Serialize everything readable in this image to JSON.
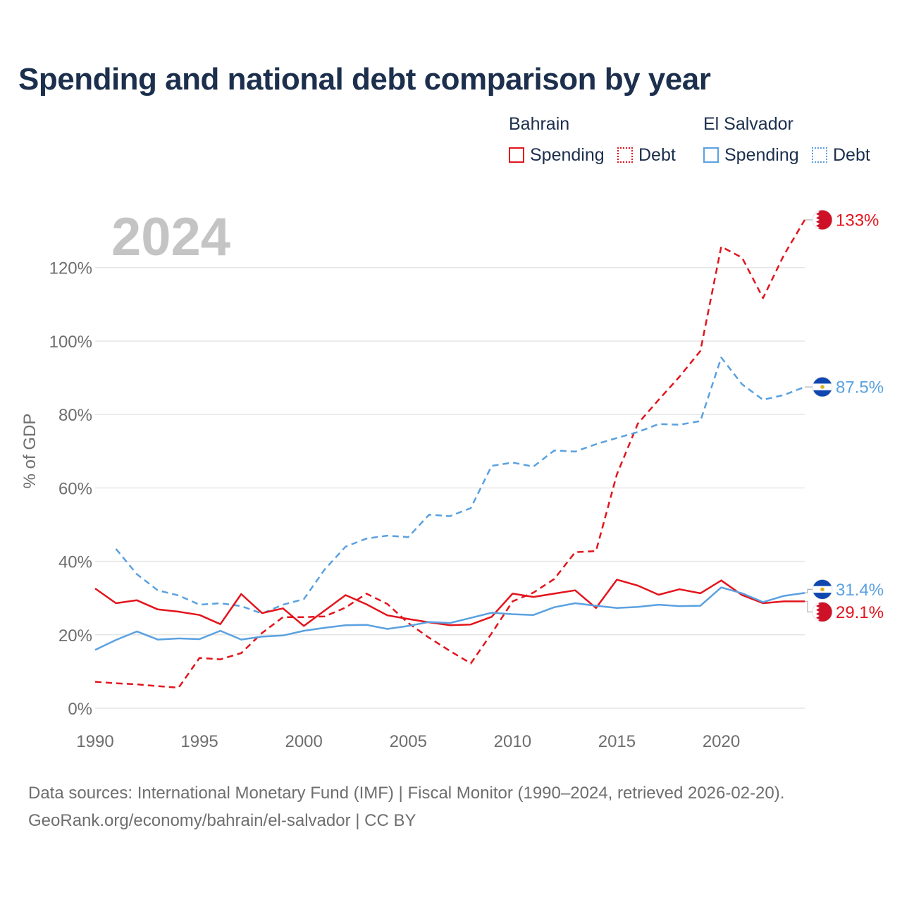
{
  "chart_data": {
    "type": "line",
    "title": "Spending and national debt comparison by year",
    "year_label": "2024",
    "ylabel": "% of GDP",
    "xlabel": "",
    "xlim": [
      1990,
      2024
    ],
    "ylim": [
      0,
      133
    ],
    "y_ticks": [
      0,
      20,
      40,
      60,
      80,
      100,
      120
    ],
    "y_tick_labels": [
      "0%",
      "20%",
      "40%",
      "60%",
      "80%",
      "100%",
      "120%"
    ],
    "x_ticks": [
      1990,
      1995,
      2000,
      2005,
      2010,
      2015,
      2020
    ],
    "x_tick_labels": [
      "1990",
      "1995",
      "2000",
      "2005",
      "2010",
      "2015",
      "2020"
    ],
    "legend_groups": [
      {
        "country": "Bahrain",
        "items": [
          "Spending",
          "Debt"
        ]
      },
      {
        "country": "El Salvador",
        "items": [
          "Spending",
          "Debt"
        ]
      }
    ],
    "series": [
      {
        "name": "Bahrain Debt",
        "country": "Bahrain",
        "metric": "Debt",
        "color": "#e3141c",
        "dash": true,
        "x": [
          1990,
          1991,
          1992,
          1993,
          1994,
          1995,
          1996,
          1997,
          1998,
          1999,
          2000,
          2001,
          2002,
          2003,
          2004,
          2005,
          2006,
          2007,
          2008,
          2009,
          2010,
          2011,
          2012,
          2013,
          2014,
          2015,
          2016,
          2017,
          2018,
          2019,
          2020,
          2021,
          2022,
          2023,
          2024
        ],
        "values": [
          7.2,
          6.8,
          6.5,
          6.0,
          5.6,
          13.7,
          13.3,
          15.0,
          20.5,
          24.8,
          24.8,
          25.0,
          27.4,
          31.2,
          28.4,
          23.2,
          19.2,
          15.6,
          12.2,
          20.4,
          29.1,
          31.5,
          35.2,
          42.5,
          42.8,
          63.7,
          77.5,
          84.0,
          90.3,
          97.3,
          125.7,
          122.7,
          111.7,
          123.4,
          133.0
        ],
        "end_label": "133%"
      },
      {
        "name": "El Salvador Debt",
        "country": "El Salvador",
        "metric": "Debt",
        "color": "#5aa1e0",
        "dash": true,
        "x": [
          1991,
          1992,
          1993,
          1994,
          1995,
          1996,
          1997,
          1998,
          1999,
          2000,
          2001,
          2002,
          2003,
          2004,
          2005,
          2006,
          2007,
          2008,
          2009,
          2010,
          2011,
          2012,
          2013,
          2014,
          2015,
          2016,
          2017,
          2018,
          2019,
          2020,
          2021,
          2022,
          2023,
          2024
        ],
        "values": [
          43.4,
          36.5,
          32.1,
          30.7,
          28.2,
          28.6,
          27.8,
          25.8,
          28.2,
          29.7,
          37.8,
          44.0,
          46.2,
          47.0,
          46.6,
          52.7,
          52.3,
          54.5,
          66.0,
          66.9,
          65.8,
          70.2,
          69.9,
          71.9,
          73.6,
          75.2,
          77.4,
          77.2,
          78.2,
          95.5,
          88.2,
          84.0,
          85.3,
          87.5
        ],
        "end_label": "87.5%"
      },
      {
        "name": "Bahrain Spending",
        "country": "Bahrain",
        "metric": "Spending",
        "color": "#e3141c",
        "dash": false,
        "x": [
          1990,
          1991,
          1992,
          1993,
          1994,
          1995,
          1996,
          1997,
          1998,
          1999,
          2000,
          2001,
          2002,
          2003,
          2004,
          2005,
          2006,
          2007,
          2008,
          2009,
          2010,
          2011,
          2012,
          2013,
          2014,
          2015,
          2016,
          2017,
          2018,
          2019,
          2020,
          2021,
          2022,
          2023,
          2024
        ],
        "values": [
          32.6,
          28.6,
          29.4,
          26.9,
          26.3,
          25.4,
          22.9,
          31.1,
          25.9,
          27.2,
          22.4,
          26.6,
          30.8,
          28.3,
          25.3,
          24.3,
          23.4,
          22.6,
          22.8,
          24.9,
          31.2,
          30.3,
          31.2,
          32.1,
          27.3,
          35.0,
          33.4,
          30.9,
          32.4,
          31.3,
          34.8,
          30.8,
          28.6,
          29.1,
          29.1
        ],
        "end_label": "29.1%"
      },
      {
        "name": "El Salvador Spending",
        "country": "El Salvador",
        "metric": "Spending",
        "color": "#5aa1e0",
        "dash": false,
        "x": [
          1990,
          1991,
          1992,
          1993,
          1994,
          1995,
          1996,
          1997,
          1998,
          1999,
          2000,
          2001,
          2002,
          2003,
          2004,
          2005,
          2006,
          2007,
          2008,
          2009,
          2010,
          2011,
          2012,
          2013,
          2014,
          2015,
          2016,
          2017,
          2018,
          2019,
          2020,
          2021,
          2022,
          2023,
          2024
        ],
        "values": [
          15.9,
          18.6,
          20.9,
          18.7,
          19.0,
          18.8,
          21.1,
          18.7,
          19.5,
          19.8,
          21.1,
          21.9,
          22.6,
          22.7,
          21.6,
          22.4,
          23.5,
          23.2,
          24.6,
          26.0,
          25.6,
          25.4,
          27.5,
          28.6,
          27.9,
          27.3,
          27.6,
          28.2,
          27.8,
          27.9,
          32.9,
          31.3,
          28.9,
          30.6,
          31.4
        ],
        "end_label": "31.4%"
      }
    ]
  },
  "legend": {
    "bahrain_title": "Bahrain",
    "el_salvador_title": "El Salvador",
    "spending_label": "Spending",
    "debt_label": "Debt"
  },
  "flags": {
    "bahrain": {
      "colors": [
        "#ce1126",
        "#ffffff"
      ]
    },
    "el_salvador": {
      "colors": [
        "#0f47af",
        "#ffffff",
        "#e0b020"
      ]
    }
  },
  "footer": {
    "line1": "Data sources: International Monetary Fund (IMF) | Fiscal Monitor (1990–2024, retrieved 2026-02-20).",
    "line2": "GeoRank.org/economy/bahrain/el-salvador | CC BY"
  }
}
